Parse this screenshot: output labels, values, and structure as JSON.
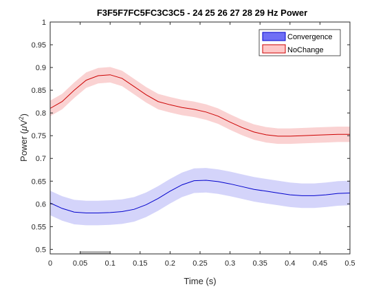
{
  "chart_data": {
    "type": "line",
    "title": "F3F5F7FC5FC3C3C5 - 24  25  26  27  28  29 Hz Power",
    "xlabel": "Time (s)",
    "ylabel_main": "Power (",
    "ylabel_mu": "μ",
    "ylabel_unit": "V",
    "ylabel_sup": "2",
    "ylabel_close": ")",
    "xlim": [
      0,
      0.5
    ],
    "ylim": [
      0.49,
      1.0
    ],
    "x_ticks": [
      "0",
      "0.05",
      "0.1",
      "0.15",
      "0.2",
      "0.25",
      "0.3",
      "0.35",
      "0.4",
      "0.45",
      "0.5"
    ],
    "y_ticks": [
      "0.5",
      "0.55",
      "0.6",
      "0.65",
      "0.7",
      "0.75",
      "0.8",
      "0.85",
      "0.9",
      "0.95",
      "1"
    ],
    "grid": false,
    "legend_position": "top-right",
    "x": [
      0,
      0.02,
      0.04,
      0.06,
      0.08,
      0.1,
      0.12,
      0.14,
      0.16,
      0.18,
      0.2,
      0.22,
      0.24,
      0.26,
      0.28,
      0.3,
      0.32,
      0.34,
      0.36,
      0.38,
      0.4,
      0.42,
      0.44,
      0.46,
      0.48,
      0.5
    ],
    "series": [
      {
        "name": "Convergence",
        "color": "#0000cc",
        "fill": "#d4d4fa",
        "legend_fill": "#6f6ff5",
        "values": [
          0.602,
          0.59,
          0.582,
          0.58,
          0.58,
          0.581,
          0.583,
          0.588,
          0.598,
          0.612,
          0.628,
          0.642,
          0.651,
          0.652,
          0.649,
          0.644,
          0.638,
          0.632,
          0.628,
          0.624,
          0.62,
          0.618,
          0.618,
          0.62,
          0.623,
          0.624
        ],
        "band": 0.027
      },
      {
        "name": "NoChange",
        "color": "#cc0000",
        "fill": "#fad2d2",
        "legend_fill": "#ffc8c8",
        "values": [
          0.81,
          0.825,
          0.85,
          0.872,
          0.882,
          0.884,
          0.876,
          0.858,
          0.84,
          0.825,
          0.818,
          0.812,
          0.808,
          0.802,
          0.793,
          0.78,
          0.768,
          0.758,
          0.752,
          0.749,
          0.749,
          0.75,
          0.751,
          0.752,
          0.753,
          0.753
        ],
        "band": 0.017
      }
    ],
    "marker_bar": {
      "x": [
        0.05,
        0.1
      ],
      "color": "#b3b3b3"
    }
  }
}
